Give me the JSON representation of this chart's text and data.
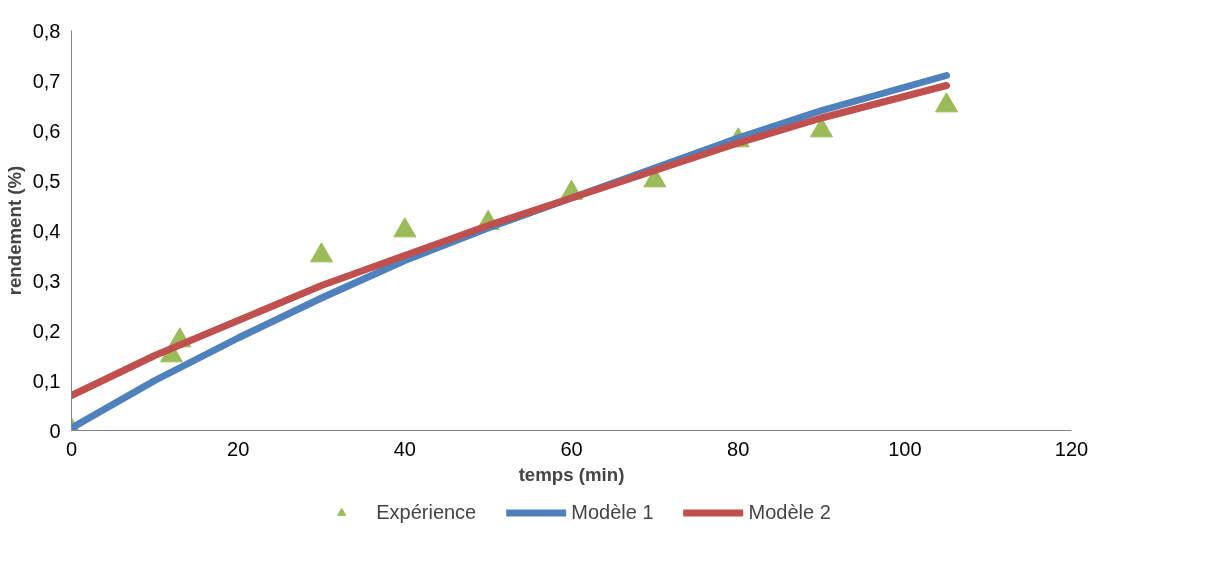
{
  "chart_data": {
    "type": "line",
    "xlabel": "temps (min)",
    "ylabel": "rendement (%)",
    "xlim": [
      0,
      120
    ],
    "xticks": [
      0,
      20,
      40,
      60,
      80,
      100,
      120
    ],
    "ylim": [
      0,
      0.8
    ],
    "yticks": [
      {
        "value": 0,
        "label": "0"
      },
      {
        "value": 0.1,
        "label": "0,1"
      },
      {
        "value": 0.2,
        "label": "0,2"
      },
      {
        "value": 0.3,
        "label": "0,3"
      },
      {
        "value": 0.4,
        "label": "0,4"
      },
      {
        "value": 0.5,
        "label": "0,5"
      },
      {
        "value": 0.6,
        "label": "0,6"
      },
      {
        "value": 0.7,
        "label": "0,7"
      },
      {
        "value": 0.8,
        "label": "0,8"
      }
    ],
    "grid": false,
    "legend": "bottom",
    "series": [
      {
        "name": "Expérience",
        "type": "scatter",
        "marker": "triangle",
        "color": "#9bbb59",
        "x": [
          0,
          12,
          13,
          30,
          40,
          50,
          60,
          70,
          80,
          90,
          105
        ],
        "values": [
          0,
          0.15,
          0.18,
          0.35,
          0.4,
          0.415,
          0.475,
          0.5,
          0.58,
          0.6,
          0.65
        ]
      },
      {
        "name": "Modèle 1",
        "color": "#4f81bd",
        "x": [
          0,
          10,
          20,
          30,
          40,
          50,
          60,
          70,
          80,
          90,
          105
        ],
        "values": [
          0.005,
          0.1,
          0.185,
          0.265,
          0.34,
          0.405,
          0.465,
          0.525,
          0.585,
          0.64,
          0.71
        ]
      },
      {
        "name": "Modèle 2",
        "color": "#c0504d",
        "x": [
          0,
          10,
          20,
          30,
          40,
          50,
          60,
          70,
          80,
          90,
          105
        ],
        "values": [
          0.07,
          0.15,
          0.22,
          0.29,
          0.35,
          0.41,
          0.465,
          0.52,
          0.575,
          0.625,
          0.69
        ]
      }
    ]
  }
}
